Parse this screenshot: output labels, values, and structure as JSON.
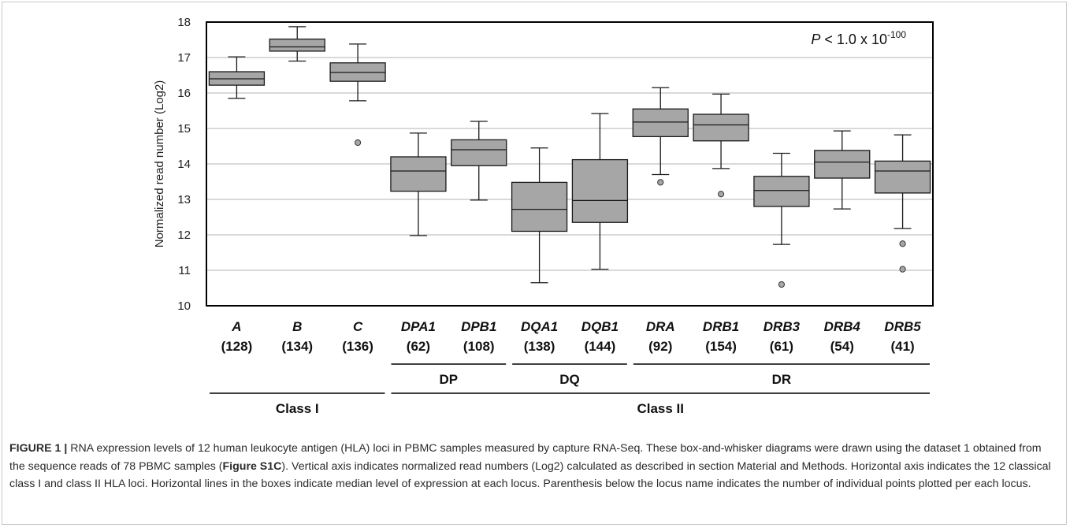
{
  "chart_data": {
    "type": "box",
    "ylabel": "Normalized read number (Log2)",
    "ylim": [
      10,
      18
    ],
    "yticks": [
      10,
      11,
      12,
      13,
      14,
      15,
      16,
      17,
      18
    ],
    "grid": true,
    "annotation": {
      "prefix": "P",
      "text": " < 1.0 x 10",
      "exponent": "-100"
    },
    "categories": [
      {
        "name": "A",
        "count": "(128)",
        "min": 15.85,
        "q1": 16.22,
        "median": 16.4,
        "q3": 16.6,
        "max": 17.02,
        "outliers": []
      },
      {
        "name": "B",
        "count": "(134)",
        "min": 16.9,
        "q1": 17.18,
        "median": 17.3,
        "q3": 17.52,
        "max": 17.87,
        "outliers": []
      },
      {
        "name": "C",
        "count": "(136)",
        "min": 15.78,
        "q1": 16.33,
        "median": 16.58,
        "q3": 16.85,
        "max": 17.38,
        "outliers": [
          14.6
        ]
      },
      {
        "name": "DPA1",
        "count": "(62)",
        "min": 11.98,
        "q1": 13.23,
        "median": 13.8,
        "q3": 14.2,
        "max": 14.87,
        "outliers": []
      },
      {
        "name": "DPB1",
        "count": "(108)",
        "min": 12.98,
        "q1": 13.95,
        "median": 14.4,
        "q3": 14.68,
        "max": 15.2,
        "outliers": []
      },
      {
        "name": "DQA1",
        "count": "(138)",
        "min": 10.65,
        "q1": 12.1,
        "median": 12.72,
        "q3": 13.48,
        "max": 14.45,
        "outliers": []
      },
      {
        "name": "DQB1",
        "count": "(144)",
        "min": 11.03,
        "q1": 12.35,
        "median": 12.97,
        "q3": 14.12,
        "max": 15.42,
        "outliers": []
      },
      {
        "name": "DRA",
        "count": "(92)",
        "min": 13.7,
        "q1": 14.77,
        "median": 15.18,
        "q3": 15.55,
        "max": 16.15,
        "outliers": [
          13.48
        ]
      },
      {
        "name": "DRB1",
        "count": "(154)",
        "min": 13.87,
        "q1": 14.65,
        "median": 15.1,
        "q3": 15.4,
        "max": 15.97,
        "outliers": [
          13.15
        ]
      },
      {
        "name": "DRB3",
        "count": "(61)",
        "min": 11.73,
        "q1": 12.8,
        "median": 13.25,
        "q3": 13.65,
        "max": 14.3,
        "outliers": [
          10.6
        ]
      },
      {
        "name": "DRB4",
        "count": "(54)",
        "min": 12.73,
        "q1": 13.6,
        "median": 14.05,
        "q3": 14.38,
        "max": 14.93,
        "outliers": []
      },
      {
        "name": "DRB5",
        "count": "(41)",
        "min": 12.18,
        "q1": 13.18,
        "median": 13.8,
        "q3": 14.08,
        "max": 14.82,
        "outliers": [
          11.75,
          11.03
        ]
      }
    ],
    "groups": [
      {
        "label": "DP",
        "from": 3,
        "to": 4,
        "level": 1
      },
      {
        "label": "DQ",
        "from": 5,
        "to": 6,
        "level": 1
      },
      {
        "label": "DR",
        "from": 7,
        "to": 11,
        "level": 1
      },
      {
        "label": "Class I",
        "from": 0,
        "to": 2,
        "level": 2
      },
      {
        "label": "Class II",
        "from": 3,
        "to": 11,
        "level": 2
      }
    ],
    "colors": {
      "box": "#a6a6a6",
      "grid": "#d9d9d9",
      "line": "#1a1a1a"
    }
  },
  "caption": {
    "label": "FIGURE 1 |",
    "text_before": " RNA expression levels of 12 human leukocyte antigen (HLA) loci in PBMC samples measured by capture RNA-Seq. These box-and-whisker diagrams were drawn using the dataset 1 obtained from the sequence reads of 78 PBMC samples (",
    "ref": "Figure S1C",
    "text_after": "). Vertical axis indicates normalized read numbers (Log2) calculated as described in section Material and Methods. Horizontal axis indicates the 12 classical class I and class II HLA loci. Horizontal lines in the boxes indicate median level of expression at each locus. Parenthesis below the locus name indicates the number of individual points plotted per each locus."
  }
}
